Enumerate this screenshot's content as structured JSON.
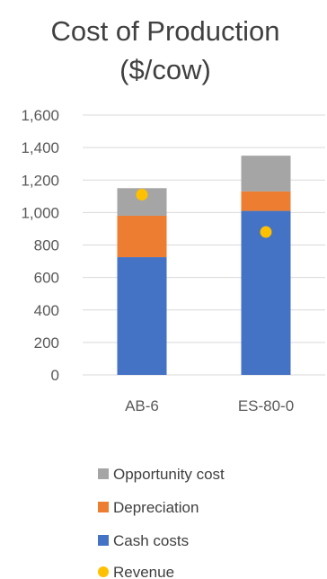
{
  "chart_data": {
    "type": "bar",
    "stacked": true,
    "title_lines": [
      "Cost of Production",
      "($/cow)"
    ],
    "categories": [
      "AB-6",
      "ES-80-0"
    ],
    "ylim": [
      0,
      1600
    ],
    "yticks": [
      0,
      200,
      400,
      600,
      800,
      1000,
      1200,
      1400,
      1600
    ],
    "ytick_labels": [
      "0",
      "200",
      "400",
      "600",
      "800",
      "1,000",
      "1,200",
      "1,400",
      "1,600"
    ],
    "grid": true,
    "legend_position": "bottom",
    "series": [
      {
        "name": "Cash costs",
        "kind": "bar",
        "color": "#4472C4",
        "values": [
          725,
          1010
        ]
      },
      {
        "name": "Depreciation",
        "kind": "bar",
        "color": "#ED7D31",
        "values": [
          255,
          120
        ]
      },
      {
        "name": "Opportunity cost",
        "kind": "bar",
        "color": "#A5A5A5",
        "values": [
          170,
          220
        ]
      },
      {
        "name": "Revenue",
        "kind": "point",
        "color": "#FFC000",
        "values": [
          1110,
          880
        ]
      }
    ],
    "legend_order": [
      "Opportunity cost",
      "Depreciation",
      "Cash costs",
      "Revenue"
    ]
  }
}
